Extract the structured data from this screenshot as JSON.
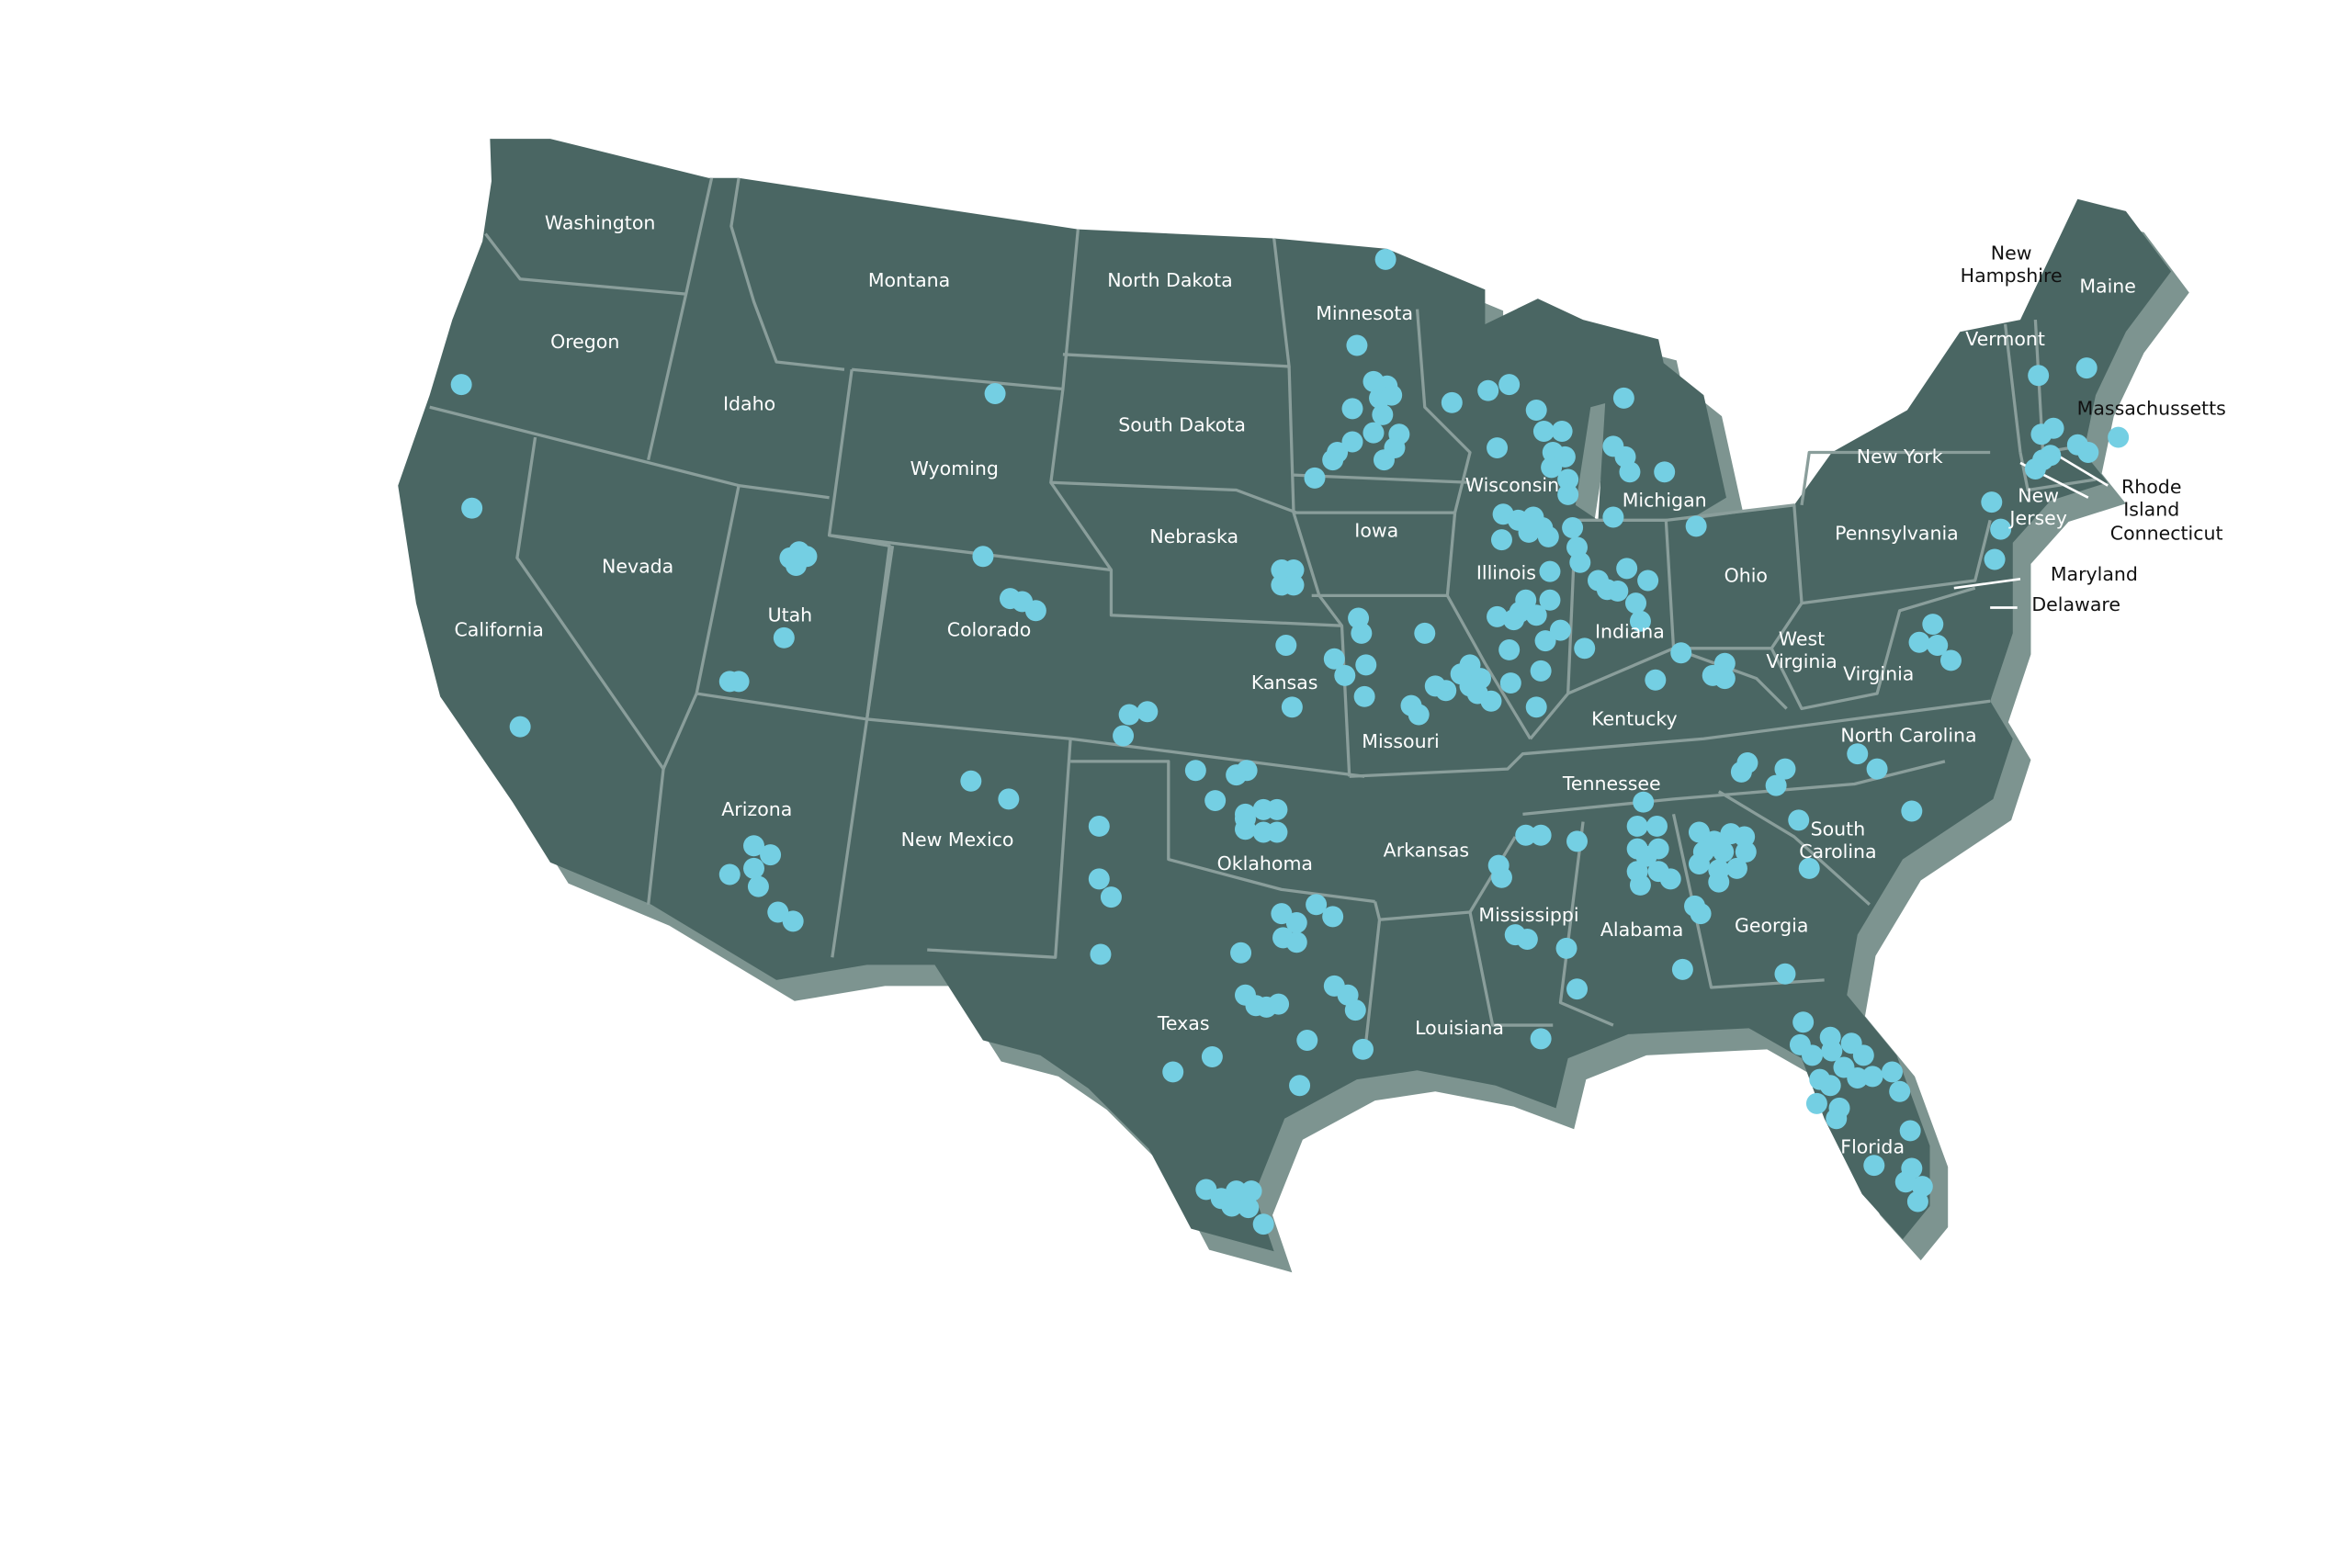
{
  "map": {
    "colors": {
      "land": "#4a6663",
      "shadow": "#7d9490",
      "border": "#8a9e9b",
      "marker": "#74cfe3",
      "label_on_land": "#ffffff",
      "label_outside": "#111111"
    },
    "marker_icon": "location-dot",
    "states": [
      "Washington",
      "Oregon",
      "California",
      "Idaho",
      "Nevada",
      "Montana",
      "Wyoming",
      "Utah",
      "Arizona",
      "Colorado",
      "New Mexico",
      "North Dakota",
      "South Dakota",
      "Nebraska",
      "Kansas",
      "Oklahoma",
      "Texas",
      "Minnesota",
      "Iowa",
      "Missouri",
      "Arkansas",
      "Louisiana",
      "Wisconsin",
      "Illinois",
      "Michigan",
      "Indiana",
      "Ohio",
      "Kentucky",
      "Tennessee",
      "Mississippi",
      "Alabama",
      "Georgia",
      "Florida",
      "South Carolina",
      "North Carolina",
      "Virginia",
      "West Virginia",
      "Pennsylvania",
      "New York",
      "Vermont",
      "Maine",
      "New Jersey",
      "New Hampshire",
      "Massachussetts",
      "Rhode Island",
      "Connecticut",
      "Maryland",
      "Delaware"
    ]
  }
}
